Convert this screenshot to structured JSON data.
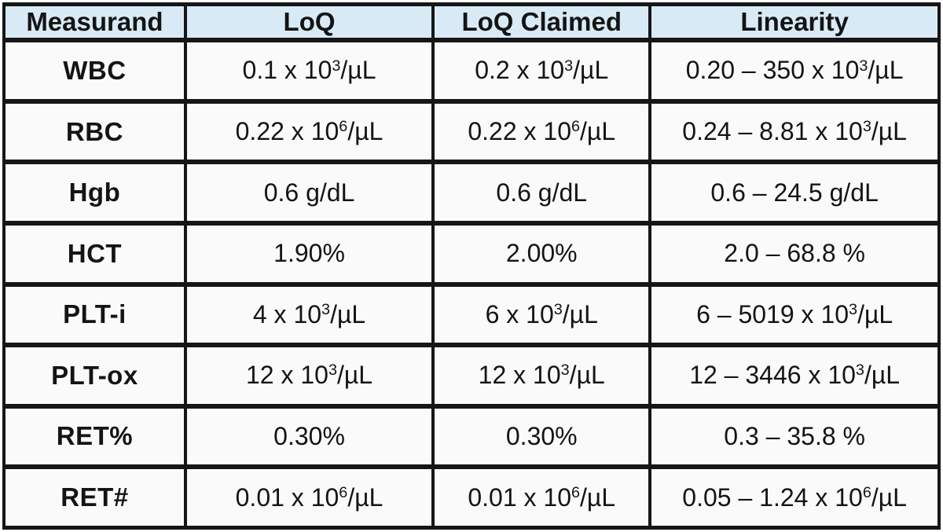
{
  "palette": {
    "border_color": "#161616",
    "header_bg": "#d9eaf7",
    "cell_bg": "#fafafa",
    "text_color": "#141414"
  },
  "table": {
    "columns": [
      "Measurand",
      "LoQ",
      "LoQ Claimed",
      "Linearity"
    ],
    "rows": [
      {
        "measurand": "WBC",
        "loq": [
          {
            "t": "0.1 x 10"
          },
          {
            "t": "3",
            "sup": true
          },
          {
            "t": "/µL"
          }
        ],
        "loq_claimed": [
          {
            "t": "0.2 x 10"
          },
          {
            "t": "3",
            "sup": true
          },
          {
            "t": "/µL"
          }
        ],
        "linearity": [
          {
            "t": "0.20 – 350 x 10"
          },
          {
            "t": "3",
            "sup": true
          },
          {
            "t": "/µL"
          }
        ]
      },
      {
        "measurand": "RBC",
        "loq": [
          {
            "t": "0.22 x 10"
          },
          {
            "t": "6",
            "sup": true
          },
          {
            "t": "/µL"
          }
        ],
        "loq_claimed": [
          {
            "t": "0.22 x 10"
          },
          {
            "t": "6",
            "sup": true
          },
          {
            "t": "/µL"
          }
        ],
        "linearity": [
          {
            "t": "0.24 – 8.81 x 10"
          },
          {
            "t": "3",
            "sup": true
          },
          {
            "t": "/µL"
          }
        ]
      },
      {
        "measurand": "Hgb",
        "loq": [
          {
            "t": "0.6 g/dL"
          }
        ],
        "loq_claimed": [
          {
            "t": "0.6 g/dL"
          }
        ],
        "linearity": [
          {
            "t": "0.6 – 24.5 g/dL"
          }
        ]
      },
      {
        "measurand": "HCT",
        "loq": [
          {
            "t": "1.90%"
          }
        ],
        "loq_claimed": [
          {
            "t": "2.00%"
          }
        ],
        "linearity": [
          {
            "t": "2.0 – 68.8 %"
          }
        ]
      },
      {
        "measurand": "PLT-i",
        "loq": [
          {
            "t": "4 x 10"
          },
          {
            "t": "3",
            "sup": true
          },
          {
            "t": "/µL"
          }
        ],
        "loq_claimed": [
          {
            "t": "6 x 10"
          },
          {
            "t": "3",
            "sup": true
          },
          {
            "t": "/µL"
          }
        ],
        "linearity": [
          {
            "t": "6 – 5019 x 10"
          },
          {
            "t": "3",
            "sup": true
          },
          {
            "t": "/µL"
          }
        ]
      },
      {
        "measurand": "PLT-ox",
        "loq": [
          {
            "t": "12 x 10"
          },
          {
            "t": "3",
            "sup": true
          },
          {
            "t": "/µL"
          }
        ],
        "loq_claimed": [
          {
            "t": "12 x 10"
          },
          {
            "t": "3",
            "sup": true
          },
          {
            "t": "/µL"
          }
        ],
        "linearity": [
          {
            "t": "12 – 3446 x 10"
          },
          {
            "t": "3",
            "sup": true
          },
          {
            "t": "/µL"
          }
        ]
      },
      {
        "measurand": "RET%",
        "loq": [
          {
            "t": "0.30%"
          }
        ],
        "loq_claimed": [
          {
            "t": "0.30%"
          }
        ],
        "linearity": [
          {
            "t": "0.3 – 35.8 %"
          }
        ]
      },
      {
        "measurand": "RET#",
        "loq": [
          {
            "t": "0.01 x 10"
          },
          {
            "t": "6",
            "sup": true
          },
          {
            "t": "/µL"
          }
        ],
        "loq_claimed": [
          {
            "t": "0.01 x 10"
          },
          {
            "t": "6",
            "sup": true
          },
          {
            "t": "/µL"
          }
        ],
        "linearity": [
          {
            "t": "0.05 – 1.24 x 10"
          },
          {
            "t": "6",
            "sup": true
          },
          {
            "t": "/µL"
          }
        ]
      }
    ]
  },
  "chart_data": {
    "type": "table",
    "title": "",
    "columns": [
      "Measurand",
      "LoQ",
      "LoQ Claimed",
      "Linearity"
    ],
    "rows": [
      [
        "WBC",
        "0.1 x 10³/µL",
        "0.2 x 10³/µL",
        "0.20 – 350 x 10³/µL"
      ],
      [
        "RBC",
        "0.22 x 10⁶/µL",
        "0.22 x 10⁶/µL",
        "0.24 – 8.81 x 10³/µL"
      ],
      [
        "Hgb",
        "0.6 g/dL",
        "0.6 g/dL",
        "0.6 – 24.5 g/dL"
      ],
      [
        "HCT",
        "1.90%",
        "2.00%",
        "2.0 – 68.8 %"
      ],
      [
        "PLT-i",
        "4 x 10³/µL",
        "6 x 10³/µL",
        "6 – 5019 x 10³/µL"
      ],
      [
        "PLT-ox",
        "12 x 10³/µL",
        "12 x 10³/µL",
        "12 – 3446 x 10³/µL"
      ],
      [
        "RET%",
        "0.30%",
        "0.30%",
        "0.3 – 35.8 %"
      ],
      [
        "RET#",
        "0.01 x 10⁶/µL",
        "0.01 x 10⁶/µL",
        "0.05 – 1.24 x 10⁶/µL"
      ]
    ],
    "layout": {
      "header_fill": "#d9eaf7",
      "body_fill": "#fafafa",
      "grid": "thick-black",
      "first_column_bold": true
    }
  }
}
